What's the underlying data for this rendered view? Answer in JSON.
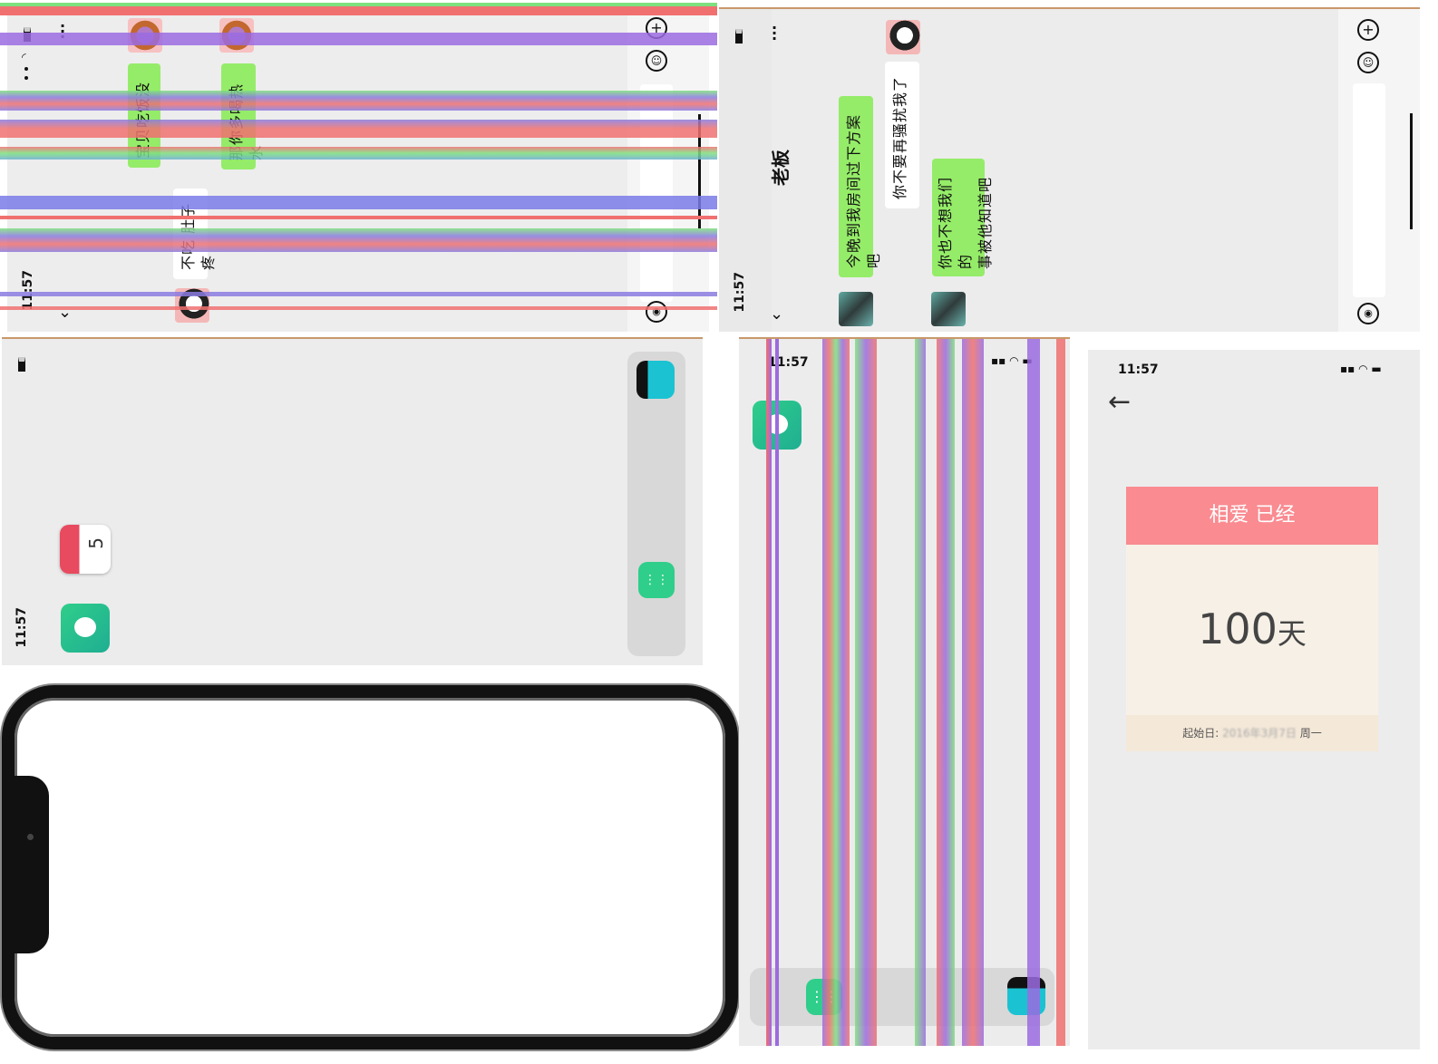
{
  "status_time": "11:57",
  "chat1": {
    "messages": [
      {
        "text": "宝贝吃饭没",
        "side": "sent"
      },
      {
        "text": "那你多喝热水",
        "side": "sent"
      },
      {
        "text": "不吃  肚子疼",
        "side": "received"
      }
    ]
  },
  "chat2": {
    "title": "老板",
    "messages": [
      {
        "text": "今晚到我房间过下方案吧",
        "side": "sent"
      },
      {
        "text": "你不要再骚扰我了",
        "side": "received"
      },
      {
        "text": "你也不想我们的事被他知道吧",
        "line1": "你也不想我们的",
        "line2": "事被他知道吧",
        "side": "sent"
      }
    ]
  },
  "home": {
    "calendar_day": "5"
  },
  "love_card": {
    "header": "相爱 已经",
    "days": "100",
    "days_unit": "天",
    "start_label": "起始日:",
    "start_date": "2016年3月7日",
    "weekday": "周一",
    "header_color": "#f98b91",
    "body_color": "#f7f0e6"
  },
  "colors": {
    "bubble_green": "#95ec69",
    "glitch_red": "#f07070",
    "glitch_purple": "#9b6be0",
    "glitch_green": "#7ee07e"
  }
}
